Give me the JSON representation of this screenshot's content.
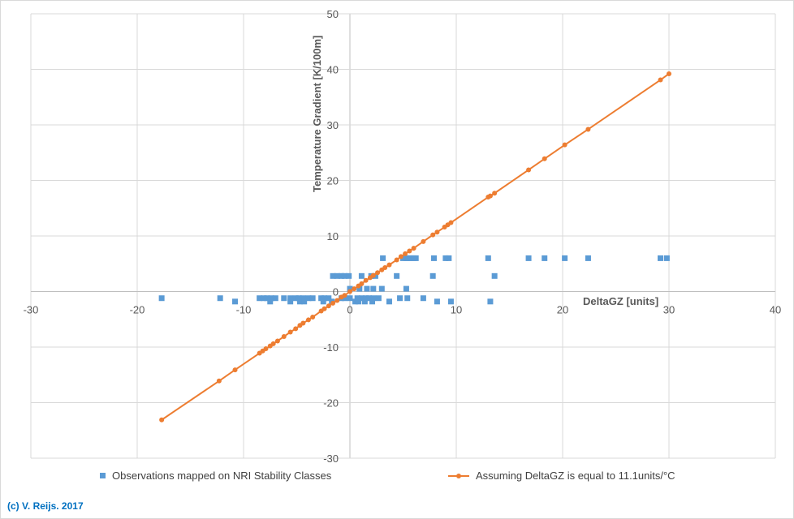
{
  "chart_data": {
    "type": "scatter",
    "xlabel": "DeltaGZ [units]",
    "ylabel": "Temperature Gradient [K/100m]",
    "xlim": [
      -30,
      40
    ],
    "ylim": [
      -30,
      50
    ],
    "xticks": [
      -30,
      -20,
      -10,
      0,
      10,
      20,
      30,
      40
    ],
    "yticks": [
      -30,
      -20,
      -10,
      0,
      10,
      20,
      30,
      40,
      50
    ],
    "grid": true,
    "legend_position": "bottom",
    "series": [
      {
        "name": "Observations mapped on NRI Stability Classes",
        "kind": "markers",
        "marker": "square",
        "color": "#5b9bd5",
        "points": [
          [
            3.1,
            6
          ],
          [
            5.0,
            6
          ],
          [
            5.3,
            6
          ],
          [
            5.5,
            6
          ],
          [
            5.7,
            6
          ],
          [
            6.0,
            6
          ],
          [
            6.2,
            6
          ],
          [
            7.9,
            6
          ],
          [
            9.0,
            6
          ],
          [
            9.3,
            6
          ],
          [
            13.0,
            6
          ],
          [
            16.8,
            6
          ],
          [
            18.3,
            6
          ],
          [
            20.2,
            6
          ],
          [
            22.4,
            6
          ],
          [
            29.2,
            6
          ],
          [
            29.8,
            6
          ],
          [
            -1.6,
            2.8
          ],
          [
            -1.2,
            2.8
          ],
          [
            -0.8,
            2.8
          ],
          [
            -0.5,
            2.8
          ],
          [
            -0.1,
            2.8
          ],
          [
            1.1,
            2.8
          ],
          [
            2.0,
            2.8
          ],
          [
            2.4,
            2.8
          ],
          [
            4.4,
            2.8
          ],
          [
            7.8,
            2.8
          ],
          [
            13.6,
            2.8
          ],
          [
            0,
            0.5
          ],
          [
            0.9,
            0.5
          ],
          [
            1.6,
            0.5
          ],
          [
            2.2,
            0.5
          ],
          [
            3.0,
            0.5
          ],
          [
            5.3,
            0.5
          ],
          [
            -17.7,
            -1.2
          ],
          [
            -12.2,
            -1.2
          ],
          [
            -8.5,
            -1.2
          ],
          [
            -8.1,
            -1.2
          ],
          [
            -7.8,
            -1.2
          ],
          [
            -7.4,
            -1.2
          ],
          [
            -7.0,
            -1.2
          ],
          [
            -6.2,
            -1.2
          ],
          [
            -5.6,
            -1.2
          ],
          [
            -5.1,
            -1.2
          ],
          [
            -4.8,
            -1.2
          ],
          [
            -4.4,
            -1.2
          ],
          [
            -3.9,
            -1.2
          ],
          [
            -3.5,
            -1.2
          ],
          [
            -2.7,
            -1.2
          ],
          [
            -2.4,
            -1.2
          ],
          [
            -2.0,
            -1.2
          ],
          [
            -0.8,
            -1.2
          ],
          [
            -0.5,
            -1.2
          ],
          [
            0,
            -1.2
          ],
          [
            0.7,
            -1.2
          ],
          [
            1.1,
            -1.2
          ],
          [
            1.5,
            -1.2
          ],
          [
            1.8,
            -1.2
          ],
          [
            2.2,
            -1.2
          ],
          [
            2.7,
            -1.2
          ],
          [
            4.7,
            -1.2
          ],
          [
            5.4,
            -1.2
          ],
          [
            6.9,
            -1.2
          ],
          [
            -10.8,
            -1.8
          ],
          [
            -7.5,
            -1.8
          ],
          [
            -5.6,
            -1.8
          ],
          [
            -4.7,
            -1.8
          ],
          [
            -4.3,
            -1.8
          ],
          [
            -2.5,
            -1.8
          ],
          [
            -1.7,
            -1.8
          ],
          [
            0.5,
            -1.8
          ],
          [
            0.8,
            -1.8
          ],
          [
            1.4,
            -1.8
          ],
          [
            2.1,
            -1.8
          ],
          [
            3.7,
            -1.8
          ],
          [
            8.2,
            -1.8
          ],
          [
            9.5,
            -1.8
          ],
          [
            13.2,
            -1.8
          ]
        ]
      },
      {
        "name": "Assuming DeltaGZ is equal to 11.1units/°C",
        "kind": "line-markers",
        "color": "#ed7d31",
        "points": [
          [
            -17.7,
            -23.1
          ],
          [
            -12.3,
            -16.1
          ],
          [
            -10.8,
            -14.1
          ],
          [
            -8.5,
            -11.1
          ],
          [
            -8.2,
            -10.7
          ],
          [
            -7.9,
            -10.3
          ],
          [
            -7.5,
            -9.8
          ],
          [
            -7.2,
            -9.4
          ],
          [
            -6.8,
            -8.9
          ],
          [
            -6.2,
            -8.1
          ],
          [
            -5.6,
            -7.3
          ],
          [
            -5.1,
            -6.7
          ],
          [
            -4.7,
            -6.1
          ],
          [
            -4.4,
            -5.7
          ],
          [
            -3.9,
            -5.1
          ],
          [
            -3.5,
            -4.6
          ],
          [
            -2.7,
            -3.5
          ],
          [
            -2.4,
            -3.1
          ],
          [
            -2.0,
            -2.6
          ],
          [
            -1.6,
            -2.1
          ],
          [
            -1.2,
            -1.6
          ],
          [
            -0.8,
            -1.0
          ],
          [
            -0.5,
            -0.7
          ],
          [
            0,
            0
          ],
          [
            0.4,
            0.5
          ],
          [
            0.8,
            1.0
          ],
          [
            1.1,
            1.4
          ],
          [
            1.5,
            2.0
          ],
          [
            1.9,
            2.5
          ],
          [
            2.2,
            2.9
          ],
          [
            2.6,
            3.4
          ],
          [
            3.0,
            3.9
          ],
          [
            3.3,
            4.3
          ],
          [
            3.7,
            4.8
          ],
          [
            4.4,
            5.7
          ],
          [
            4.8,
            6.3
          ],
          [
            5.2,
            6.8
          ],
          [
            5.6,
            7.3
          ],
          [
            6.0,
            7.8
          ],
          [
            6.9,
            9.0
          ],
          [
            7.8,
            10.2
          ],
          [
            8.2,
            10.7
          ],
          [
            8.9,
            11.6
          ],
          [
            9.2,
            12.0
          ],
          [
            9.5,
            12.4
          ],
          [
            13.0,
            17.0
          ],
          [
            13.2,
            17.2
          ],
          [
            13.6,
            17.7
          ],
          [
            16.8,
            21.9
          ],
          [
            18.3,
            23.9
          ],
          [
            20.2,
            26.4
          ],
          [
            22.4,
            29.2
          ],
          [
            29.2,
            38.1
          ],
          [
            30.0,
            39.2
          ]
        ]
      }
    ]
  },
  "footer": {
    "copyright": "(c) V. Reijs. 2017"
  }
}
